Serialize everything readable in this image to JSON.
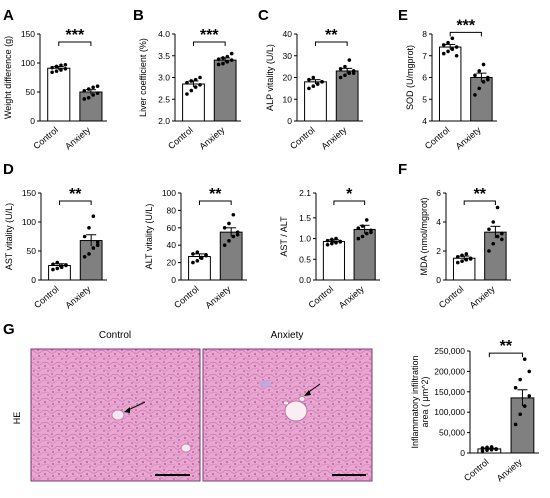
{
  "figure": {
    "group_labels": [
      "Control",
      "Anxiety"
    ],
    "stain_label": "HE",
    "histology_titles": [
      "Control",
      "Anxiety"
    ],
    "colors": {
      "control_fill": "#ffffff",
      "anxiety_fill": "#808080",
      "tissue_bg": "#e6a3cd",
      "tissue_nuclei": "#a8509a"
    }
  },
  "chart_data": [
    {
      "panel": "A",
      "type": "bar",
      "categories": [
        "Control",
        "Anxiety"
      ],
      "values": [
        91,
        50
      ],
      "errors": [
        3,
        4
      ],
      "points": [
        [
          84,
          86,
          88,
          90,
          92,
          94,
          96,
          97
        ],
        [
          38,
          40,
          45,
          48,
          52,
          55,
          58,
          60
        ]
      ],
      "ylabel": "Weight difference (g)",
      "ylim": [
        0,
        150
      ],
      "yticks": [
        0,
        50,
        100,
        150
      ],
      "significance": "***"
    },
    {
      "panel": "B",
      "type": "bar",
      "categories": [
        "Control",
        "Anxiety"
      ],
      "values": [
        2.85,
        3.4
      ],
      "errors": [
        0.07,
        0.05
      ],
      "points": [
        [
          2.62,
          2.7,
          2.78,
          2.83,
          2.88,
          2.92,
          2.95,
          3.0
        ],
        [
          3.3,
          3.32,
          3.36,
          3.4,
          3.42,
          3.45,
          3.48,
          3.55
        ]
      ],
      "ylabel": "Liver coefficient (%)",
      "ylim": [
        2.0,
        4.0
      ],
      "yticks": [
        "2.0",
        "2.5",
        "3.0",
        "3.5",
        "4.0"
      ],
      "significance": "***"
    },
    {
      "panel": "C",
      "type": "bar",
      "categories": [
        "Control",
        "Anxiety"
      ],
      "values": [
        18,
        23
      ],
      "errors": [
        1,
        1.2
      ],
      "points": [
        [
          15,
          16,
          17,
          18,
          19,
          20,
          17,
          18
        ],
        [
          20,
          21,
          22,
          23,
          24,
          25,
          28,
          22
        ]
      ],
      "ylabel": "ALP vitality (U/L)",
      "ylim": [
        0,
        40
      ],
      "yticks": [
        0,
        10,
        20,
        30,
        40
      ],
      "significance": "**"
    },
    {
      "panel": "E",
      "type": "bar",
      "categories": [
        "Control",
        "Anxiety"
      ],
      "values": [
        7.4,
        6.0
      ],
      "errors": [
        0.12,
        0.2
      ],
      "points": [
        [
          7.1,
          7.2,
          7.3,
          7.4,
          7.5,
          7.6,
          7.8,
          7.0
        ],
        [
          5.2,
          5.5,
          5.8,
          6.0,
          6.1,
          6.3,
          6.6,
          5.9
        ]
      ],
      "ylabel": "SOD (U/mgprot)",
      "ylim": [
        4,
        8
      ],
      "yticks": [
        4,
        5,
        6,
        7,
        8
      ],
      "significance": "***"
    },
    {
      "panel": "D",
      "type": "bar",
      "categories": [
        "Control",
        "Anxiety"
      ],
      "values": [
        25,
        68
      ],
      "errors": [
        3,
        10
      ],
      "points": [
        [
          18,
          20,
          22,
          25,
          27,
          30,
          24,
          26
        ],
        [
          40,
          45,
          55,
          65,
          75,
          90,
          110,
          60
        ]
      ],
      "ylabel": "AST vitality (U/L)",
      "ylim": [
        0,
        150
      ],
      "yticks": [
        0,
        50,
        100,
        150
      ],
      "significance": "**"
    },
    {
      "panel": "D2",
      "type": "bar",
      "categories": [
        "Control",
        "Anxiety"
      ],
      "values": [
        27,
        55
      ],
      "errors": [
        3,
        5
      ],
      "points": [
        [
          20,
          22,
          25,
          28,
          30,
          32,
          26,
          29
        ],
        [
          40,
          45,
          50,
          55,
          60,
          65,
          75,
          52
        ]
      ],
      "ylabel": "ALT vitality (U/L)",
      "ylim": [
        0,
        100
      ],
      "yticks": [
        0,
        20,
        40,
        60,
        80,
        100
      ],
      "significance": "**"
    },
    {
      "panel": "D3",
      "type": "bar",
      "categories": [
        "Control",
        "Anxiety"
      ],
      "values": [
        0.93,
        1.22
      ],
      "errors": [
        0.04,
        0.1
      ],
      "points": [
        [
          0.85,
          0.88,
          0.9,
          0.93,
          0.95,
          0.98,
          1.0,
          0.92
        ],
        [
          1.0,
          1.05,
          1.12,
          1.2,
          1.25,
          1.3,
          1.45,
          1.15
        ]
      ],
      "ylabel": "AST / ALT",
      "ylim": [
        0.0,
        2.1
      ],
      "yticks": [
        "0.0",
        "0.5",
        "1.0",
        "1.5",
        "2.1"
      ],
      "significance": "*"
    },
    {
      "panel": "F",
      "type": "bar",
      "categories": [
        "Control",
        "Anxiety"
      ],
      "values": [
        1.5,
        3.3
      ],
      "errors": [
        0.15,
        0.4
      ],
      "points": [
        [
          1.2,
          1.3,
          1.4,
          1.5,
          1.6,
          1.7,
          1.8,
          1.45
        ],
        [
          2.0,
          2.5,
          3.0,
          3.2,
          3.5,
          4.0,
          5.0,
          2.8
        ]
      ],
      "ylabel": "MDA (nmol/mgprot)",
      "ylim": [
        0,
        6
      ],
      "yticks": [
        0,
        2,
        4,
        6
      ],
      "significance": "**"
    },
    {
      "panel": "G",
      "type": "bar",
      "categories": [
        "Control",
        "Anxiety"
      ],
      "values": [
        10000,
        135000
      ],
      "errors": [
        2000,
        20000
      ],
      "points": [
        [
          5000,
          7000,
          8000,
          10000,
          12000,
          14000,
          15000,
          9000
        ],
        [
          70000,
          95000,
          115000,
          140000,
          160000,
          180000,
          230000,
          200000
        ]
      ],
      "ylabel": "Inflammatory infiltration area ( μm^2)",
      "ylim": [
        0,
        250000
      ],
      "yticks": [
        "0",
        "50,000",
        "100,000",
        "150,000",
        "200,000",
        "250,000"
      ],
      "significance": "**"
    }
  ]
}
